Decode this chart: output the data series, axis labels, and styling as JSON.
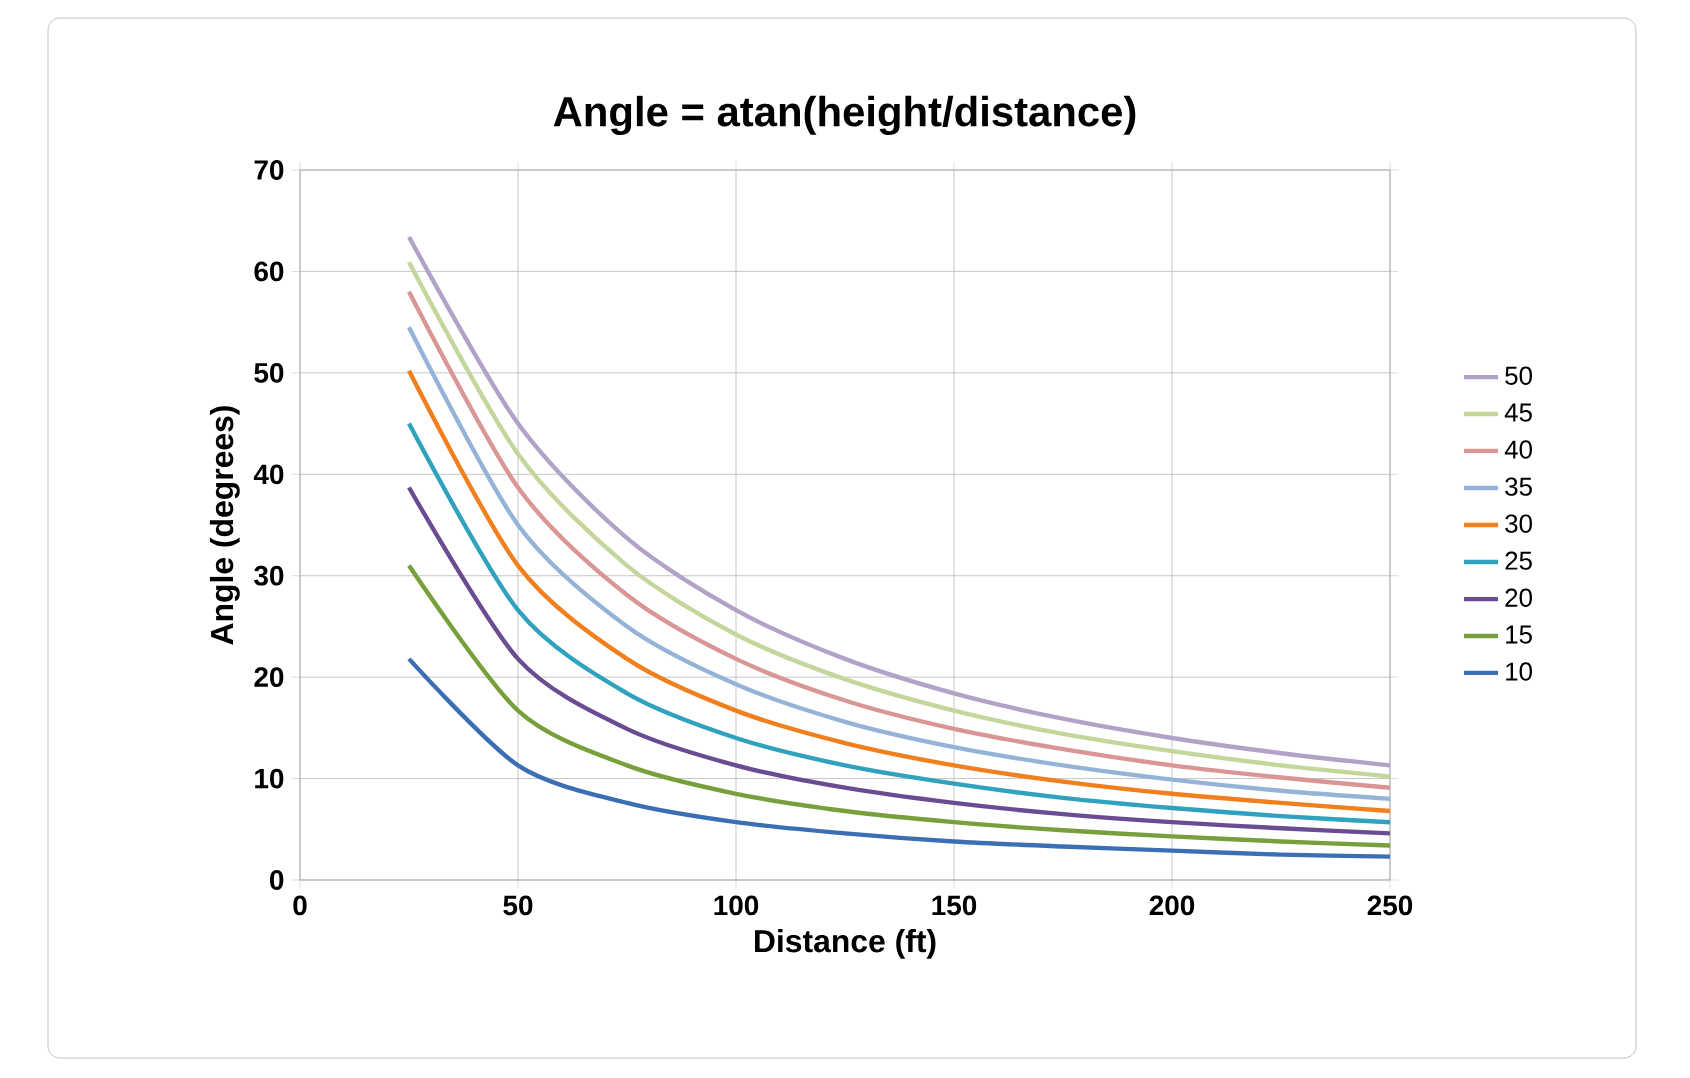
{
  "chart_data": {
    "type": "line",
    "title": "Angle = atan(height/distance)",
    "xlabel": "Distance (ft)",
    "ylabel": "Angle (degrees)",
    "x": [
      25,
      50,
      75,
      100,
      125,
      150,
      175,
      200,
      225,
      250
    ],
    "series": [
      {
        "name": "10",
        "color": "#3c6eb4",
        "values": [
          21.8,
          11.3,
          7.6,
          5.7,
          4.6,
          3.8,
          3.3,
          2.9,
          2.5,
          2.3
        ]
      },
      {
        "name": "15",
        "color": "#77a03c",
        "values": [
          31.0,
          16.7,
          11.3,
          8.5,
          6.8,
          5.7,
          4.9,
          4.3,
          3.8,
          3.4
        ]
      },
      {
        "name": "20",
        "color": "#6a4c93",
        "values": [
          38.7,
          21.8,
          14.9,
          11.3,
          9.1,
          7.6,
          6.5,
          5.7,
          5.1,
          4.6
        ]
      },
      {
        "name": "25",
        "color": "#31a2bd",
        "values": [
          45.0,
          26.6,
          18.4,
          14.0,
          11.3,
          9.5,
          8.1,
          7.1,
          6.3,
          5.7
        ]
      },
      {
        "name": "30",
        "color": "#f07f1e",
        "values": [
          50.2,
          31.0,
          21.8,
          16.7,
          13.5,
          11.3,
          9.7,
          8.5,
          7.6,
          6.8
        ]
      },
      {
        "name": "35",
        "color": "#95b3d7",
        "values": [
          54.5,
          35.0,
          25.0,
          19.3,
          15.6,
          13.1,
          11.3,
          9.9,
          8.8,
          8.0
        ]
      },
      {
        "name": "40",
        "color": "#d99694",
        "values": [
          58.0,
          38.7,
          28.1,
          21.8,
          17.7,
          14.9,
          12.9,
          11.3,
          10.1,
          9.1
        ]
      },
      {
        "name": "45",
        "color": "#c3d69b",
        "values": [
          60.9,
          42.0,
          31.0,
          24.2,
          19.8,
          16.7,
          14.4,
          12.7,
          11.3,
          10.2
        ]
      },
      {
        "name": "50",
        "color": "#b3a2c7",
        "values": [
          63.4,
          45.0,
          33.7,
          26.6,
          21.8,
          18.4,
          15.9,
          14.0,
          12.5,
          11.3
        ]
      }
    ],
    "xlim": [
      0,
      250
    ],
    "xticks": [
      0,
      50,
      100,
      150,
      200,
      250
    ],
    "ylim": [
      0,
      70
    ],
    "yticks": [
      0,
      10,
      20,
      30,
      40,
      50,
      60,
      70
    ],
    "grid": true,
    "legend": "right",
    "marker": "none",
    "line_style": "solid"
  }
}
